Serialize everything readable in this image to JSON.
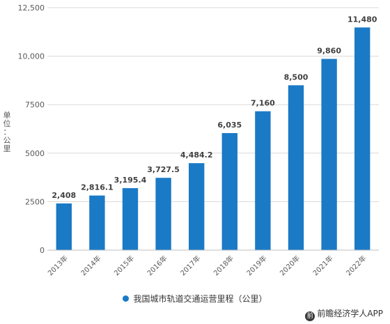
{
  "chart_data": {
    "type": "bar",
    "categories": [
      "2013年",
      "2014年",
      "2015年",
      "2016年",
      "2017年",
      "2018年",
      "2019年",
      "2020年",
      "2021年",
      "2022年"
    ],
    "values": [
      2408,
      2816.1,
      3195.4,
      3727.5,
      4484.2,
      6035,
      7160,
      8500,
      9860,
      11480
    ],
    "data_labels": [
      "2,408",
      "2,816.1",
      "3,195.4",
      "3,727.5",
      "4,484.2",
      "6,035",
      "7,160",
      "8,500",
      "9,860",
      "11,480"
    ],
    "ylim": [
      0,
      12500
    ],
    "yticks": [
      0,
      2500,
      5000,
      7500,
      10000,
      12500
    ],
    "ytick_labels": [
      "0",
      "2500",
      "5000",
      "7500",
      "10,000",
      "12,500"
    ],
    "ylabel": "单位：公里",
    "series_name": "我国城市轨道交通运营里程（公里）",
    "grid": true,
    "legend_position": "bottom",
    "bar_color": "#1a7ac6"
  },
  "watermark": {
    "icon_text": "前",
    "text": "前瞻经济学人APP"
  }
}
